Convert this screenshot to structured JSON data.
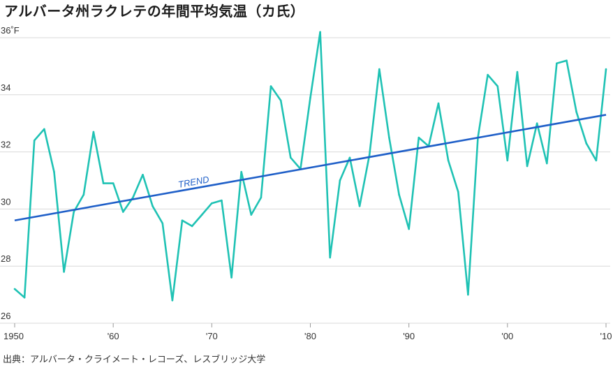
{
  "header": {
    "title": "アルバータ州ラクレテの年間平均気温（カ氏）"
  },
  "footer": {
    "source": "出典：アルバータ・クライメート・レコーズ、レスブリッジ大学"
  },
  "chart_data": {
    "type": "line",
    "title": "アルバータ州ラクレテの年間平均気温（カ氏）",
    "xlabel": "",
    "ylabel": "",
    "xlim": [
      1950,
      2010
    ],
    "ylim": [
      26,
      36
    ],
    "grid": true,
    "colors": {
      "series": "#1fc2b4",
      "trend": "#1f5fc8",
      "grid": "#d9d9d9"
    },
    "x_ticks": [
      {
        "value": 1950,
        "label": "1950"
      },
      {
        "value": 1960,
        "label": "'60"
      },
      {
        "value": 1970,
        "label": "'70"
      },
      {
        "value": 1980,
        "label": "'80"
      },
      {
        "value": 1990,
        "label": "'90"
      },
      {
        "value": 2000,
        "label": "'00"
      },
      {
        "value": 2010,
        "label": "'10"
      }
    ],
    "y_ticks": [
      {
        "value": 26,
        "label": "26"
      },
      {
        "value": 28,
        "label": "28"
      },
      {
        "value": 30,
        "label": "30"
      },
      {
        "value": 32,
        "label": "32"
      },
      {
        "value": 34,
        "label": "34"
      },
      {
        "value": 36,
        "label": "36˚F"
      }
    ],
    "series": [
      {
        "x": [
          1950,
          1951,
          1952,
          1953,
          1954,
          1955,
          1956,
          1957,
          1958,
          1959,
          1960,
          1961,
          1962,
          1963,
          1964,
          1965,
          1966,
          1967,
          1968,
          1969,
          1970,
          1971,
          1972,
          1973,
          1974,
          1975,
          1976,
          1977,
          1978,
          1979,
          1980,
          1981,
          1982,
          1983,
          1984,
          1985,
          1986,
          1987,
          1988,
          1989,
          1990,
          1991,
          1992,
          1993,
          1994,
          1995,
          1996,
          1997,
          1998,
          1999,
          2000,
          2001,
          2002,
          2003,
          2004,
          2005,
          2006,
          2007,
          2008,
          2009,
          2010
        ],
        "values": [
          27.2,
          26.9,
          32.4,
          32.8,
          31.3,
          27.8,
          29.9,
          30.5,
          32.7,
          30.9,
          30.9,
          29.9,
          30.4,
          31.2,
          30.1,
          29.5,
          26.8,
          29.6,
          29.4,
          29.8,
          30.2,
          30.3,
          27.6,
          31.3,
          29.8,
          30.4,
          34.3,
          33.8,
          31.8,
          31.4,
          33.9,
          36.2,
          28.3,
          31.0,
          31.8,
          30.1,
          31.9,
          34.9,
          32.5,
          30.5,
          29.3,
          32.5,
          32.2,
          33.7,
          31.7,
          30.6,
          27.0,
          32.5,
          34.7,
          34.3,
          31.7,
          34.8,
          31.5,
          33.0,
          31.6,
          35.1,
          35.2,
          33.4,
          32.3,
          31.7,
          34.9
        ]
      }
    ],
    "trend": {
      "label": "TREND",
      "x": [
        1950,
        2010
      ],
      "values": [
        29.6,
        33.3
      ]
    }
  }
}
